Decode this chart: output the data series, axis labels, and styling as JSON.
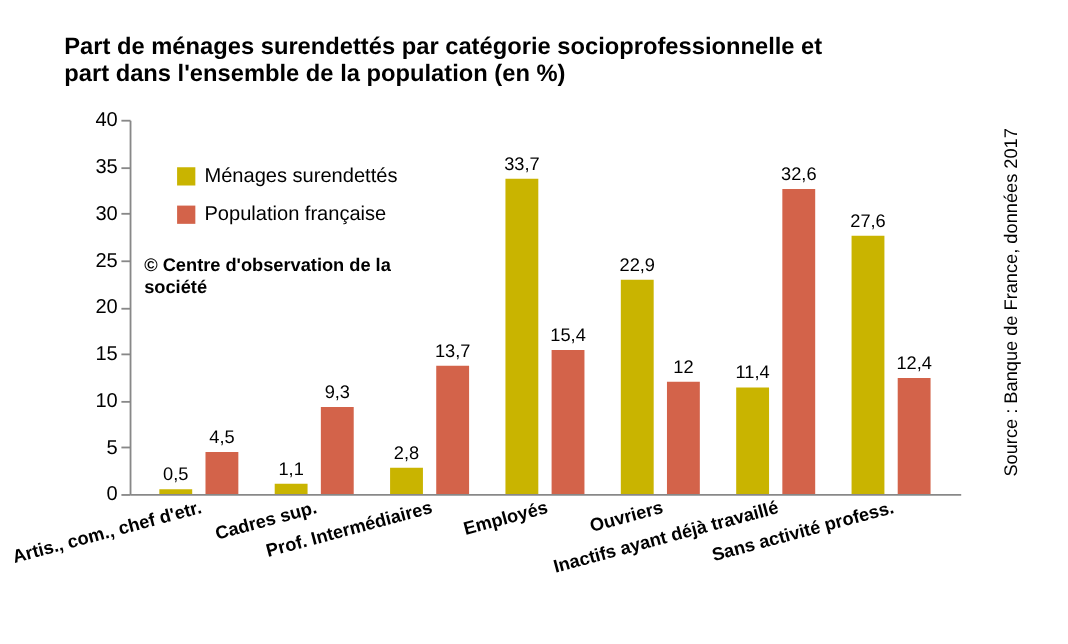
{
  "chart_data": {
    "type": "bar",
    "title": "Part de ménages surendettés par catégorie socioprofessionnelle et part dans l'ensemble de la population (en %)",
    "categories": [
      "Artis., com., chef d'etr.",
      "Cadres sup.",
      "Prof. Intermédiaires",
      "Employés",
      "Ouvriers",
      "Inactifs ayant déjà travaillé",
      "Sans activité profess."
    ],
    "series": [
      {
        "name": "Ménages surendettés",
        "color": "#c9b400",
        "values": [
          0.5,
          1.1,
          2.8,
          33.7,
          22.9,
          11.4,
          27.6
        ],
        "value_labels": [
          "0,5",
          "1,1",
          "2,8",
          "33,7",
          "22,9",
          "11,4",
          "27,6"
        ]
      },
      {
        "name": "Population française",
        "color": "#d3634a",
        "values": [
          4.5,
          9.3,
          13.7,
          15.4,
          12,
          32.6,
          12.4
        ],
        "value_labels": [
          "4,5",
          "9,3",
          "13,7",
          "15,4",
          "12",
          "32,6",
          "12,4"
        ]
      }
    ],
    "ylim": [
      0,
      40
    ],
    "yticks": [
      0,
      5,
      10,
      15,
      20,
      25,
      30,
      35,
      40
    ],
    "grid": false,
    "legend": "top left",
    "annotations": [
      "© Centre d'observation de la société",
      "Source : Banque de France, données 2017"
    ]
  }
}
